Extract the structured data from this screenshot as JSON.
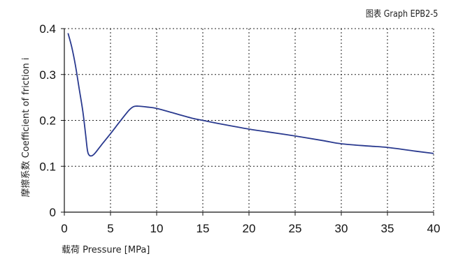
{
  "caption": "图表 Graph EPB2-5",
  "chart_data": {
    "type": "line",
    "title": "图表 Graph EPB2-5",
    "xlabel": "载荷 Pressure [MPa]",
    "ylabel": "摩擦系数 Coefficient of friction i",
    "xlim": [
      0,
      40
    ],
    "ylim": [
      0,
      0.4
    ],
    "xticks": [
      0,
      5,
      10,
      15,
      20,
      25,
      30,
      35,
      40
    ],
    "yticks": [
      0,
      0.1,
      0.2,
      0.3,
      0.4
    ],
    "ytick_labels": [
      "0",
      "0.1",
      "0.2",
      "0.3",
      "0.4"
    ],
    "grid": true,
    "series": [
      {
        "color": "#2a3a8f",
        "x": [
          0.4,
          0.8,
          1.2,
          1.6,
          2.0,
          2.3,
          2.5,
          2.7,
          3.0,
          3.3,
          4.0,
          5.0,
          6.0,
          7.0,
          7.5,
          8.0,
          9.0,
          10.0,
          12.0,
          14.0,
          15.0,
          17.0,
          20.0,
          22.0,
          25.0,
          28.0,
          30.0,
          33.0,
          35.0,
          38.0,
          40.0
        ],
        "y": [
          0.39,
          0.36,
          0.32,
          0.27,
          0.22,
          0.17,
          0.135,
          0.124,
          0.123,
          0.128,
          0.146,
          0.171,
          0.197,
          0.222,
          0.23,
          0.231,
          0.229,
          0.226,
          0.215,
          0.204,
          0.2,
          0.192,
          0.181,
          0.175,
          0.166,
          0.156,
          0.149,
          0.144,
          0.141,
          0.133,
          0.128
        ]
      }
    ]
  }
}
